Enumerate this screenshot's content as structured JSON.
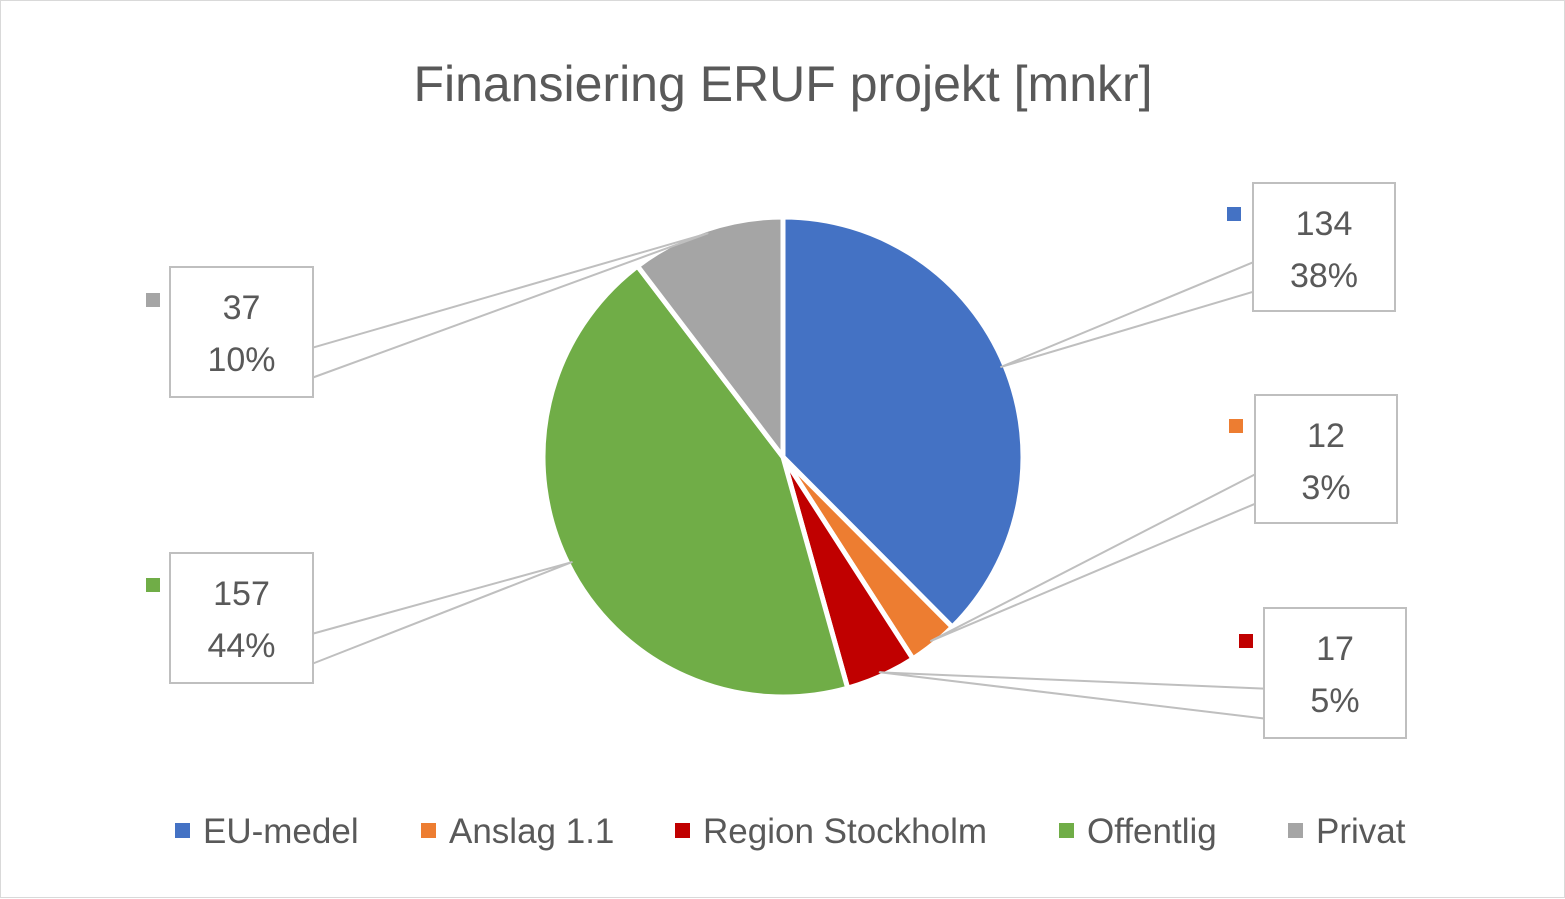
{
  "chart_data": {
    "type": "pie",
    "title": "Finansiering ERUF projekt [mnkr]",
    "categories": [
      "EU-medel",
      "Anslag 1.1",
      "Region Stockholm",
      "Offentlig",
      "Privat"
    ],
    "values": [
      134,
      12,
      17,
      157,
      37
    ],
    "percent_labels": [
      "38%",
      "3%",
      "5%",
      "44%",
      "10%"
    ],
    "colors": [
      "#4472C4",
      "#ED7D31",
      "#C00000",
      "#70AD47",
      "#A5A5A5"
    ],
    "legend_position": "bottom",
    "data_labels": "callout boxes with value and percentage"
  }
}
